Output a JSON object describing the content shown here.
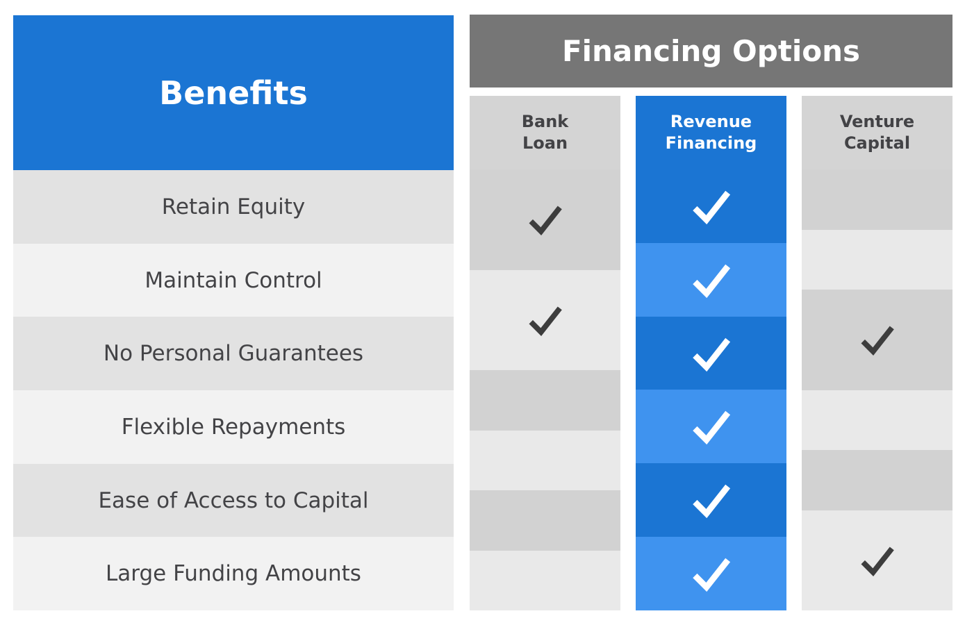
{
  "benefits": {
    "header": "Benefits",
    "rows": [
      "Retain Equity",
      "Maintain Control",
      "No Personal Guarantees",
      "Flexible Repayments",
      "Ease of Access to Capital",
      "Large Funding Amounts"
    ]
  },
  "financing": {
    "header": "Financing Options",
    "columns": [
      {
        "name": "Bank Loan",
        "lines": [
          "Bank",
          "Loan"
        ],
        "highlighted": false
      },
      {
        "name": "Revenue Financing",
        "lines": [
          "Revenue",
          "Financing"
        ],
        "highlighted": true
      },
      {
        "name": "Venture Capital",
        "lines": [
          "Venture",
          "Capital"
        ],
        "highlighted": false
      }
    ],
    "checks": {
      "bank_loan": [
        true,
        true,
        false,
        false,
        false,
        false
      ],
      "revenue_financing": [
        true,
        true,
        true,
        true,
        true,
        true
      ],
      "venture_capital": [
        false,
        false,
        true,
        false,
        false,
        true
      ]
    }
  },
  "icons": {
    "check_icon": "checkmark"
  },
  "colors": {
    "primary-blue": "#1b75d3",
    "light-blue": "#3f93ef",
    "banner-gray": "#767676",
    "col-header-gray": "#d4d4d4",
    "gray-row-light": "#e9e9e9",
    "gray-row-dark": "#d2d2d2",
    "left-row-light": "#f2f2f2",
    "left-row-dark": "#e2e2e2",
    "text-dark": "#434346",
    "check-dark": "#3d3d3d",
    "check-light": "#ffffff"
  }
}
